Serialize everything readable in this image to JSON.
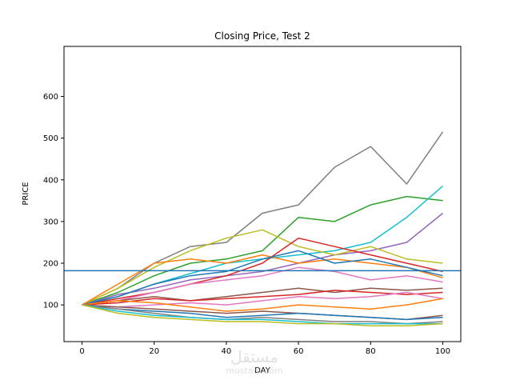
{
  "chart_data": {
    "type": "line",
    "title": "Closing Price, Test 2",
    "xlabel": "DAY",
    "ylabel": "PRICE",
    "xlim": [
      -5,
      105
    ],
    "ylim": [
      12,
      720
    ],
    "xticks": [
      0,
      20,
      40,
      60,
      80,
      100
    ],
    "yticks": [
      100,
      200,
      300,
      400,
      500,
      600
    ],
    "grid": false,
    "legend": "none",
    "hline": {
      "y": 182,
      "color": "#1f77b4"
    },
    "x": [
      0,
      10,
      20,
      30,
      40,
      50,
      60,
      70,
      80,
      90,
      100
    ],
    "series": [
      {
        "color": "#7f7f7f",
        "values": [
          100,
          140,
          200,
          240,
          250,
          320,
          340,
          430,
          480,
          390,
          515
        ]
      },
      {
        "color": "#2ca02c",
        "values": [
          100,
          130,
          170,
          200,
          210,
          230,
          310,
          300,
          340,
          360,
          350
        ]
      },
      {
        "color": "#17becf",
        "values": [
          100,
          120,
          150,
          175,
          200,
          210,
          220,
          230,
          250,
          310,
          385
        ]
      },
      {
        "color": "#9467bd",
        "values": [
          100,
          125,
          140,
          160,
          170,
          180,
          200,
          220,
          230,
          250,
          320
        ]
      },
      {
        "color": "#bcbd22",
        "values": [
          100,
          140,
          190,
          230,
          260,
          280,
          240,
          220,
          240,
          210,
          200
        ]
      },
      {
        "color": "#d62728",
        "values": [
          100,
          115,
          130,
          150,
          170,
          200,
          260,
          240,
          220,
          200,
          180
        ]
      },
      {
        "color": "#ff7f0e",
        "values": [
          100,
          150,
          200,
          210,
          200,
          220,
          200,
          210,
          200,
          190,
          165
        ]
      },
      {
        "color": "#1f77b4",
        "values": [
          100,
          120,
          150,
          170,
          180,
          210,
          230,
          200,
          210,
          190,
          170
        ]
      },
      {
        "color": "#e377c2",
        "values": [
          100,
          110,
          130,
          150,
          160,
          170,
          190,
          180,
          160,
          170,
          155
        ]
      },
      {
        "color": "#8c564b",
        "values": [
          100,
          110,
          120,
          110,
          120,
          130,
          140,
          130,
          140,
          135,
          140
        ]
      },
      {
        "color": "#d62728",
        "values": [
          100,
          105,
          115,
          110,
          115,
          120,
          125,
          135,
          130,
          125,
          130
        ]
      },
      {
        "color": "#e377c2",
        "values": [
          100,
          95,
          100,
          105,
          100,
          110,
          120,
          115,
          120,
          130,
          115
        ]
      },
      {
        "color": "#ff7f0e",
        "values": [
          100,
          110,
          105,
          95,
          85,
          90,
          100,
          95,
          90,
          100,
          115
        ]
      },
      {
        "color": "#8c564b",
        "values": [
          100,
          95,
          90,
          85,
          80,
          85,
          80,
          75,
          70,
          65,
          75
        ]
      },
      {
        "color": "#1f77b4",
        "values": [
          100,
          90,
          85,
          80,
          70,
          75,
          80,
          75,
          70,
          65,
          70
        ]
      },
      {
        "color": "#7f7f7f",
        "values": [
          100,
          90,
          80,
          70,
          65,
          70,
          65,
          60,
          60,
          55,
          60
        ]
      },
      {
        "color": "#17becf",
        "values": [
          100,
          85,
          75,
          70,
          65,
          65,
          60,
          55,
          55,
          55,
          55
        ]
      },
      {
        "color": "#bcbd22",
        "values": [
          100,
          80,
          70,
          65,
          60,
          60,
          55,
          55,
          50,
          50,
          55
        ]
      }
    ]
  },
  "watermark": {
    "arabic": "مستقل",
    "latin": "mostaql.com"
  }
}
